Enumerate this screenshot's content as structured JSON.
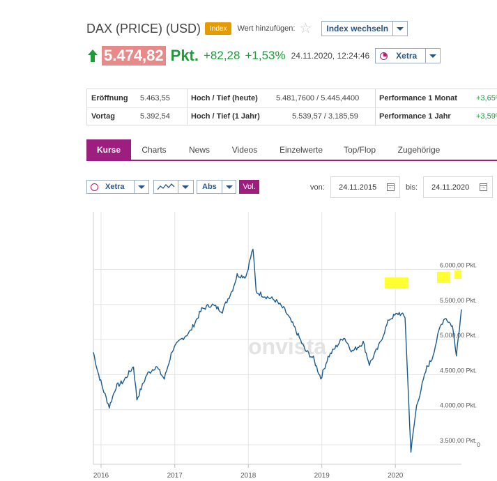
{
  "header": {
    "title": "DAX (PRICE) (USD)",
    "badge": "Index",
    "watch_label": "Wert hinzufügen:",
    "index_switch_label": "Index wechseln",
    "star_icon": "star-icon"
  },
  "quote": {
    "price": "5.474,82",
    "unit": "Pkt.",
    "change_abs": "+82,28",
    "change_pct": "+1,53%",
    "timestamp": "24.11.2020, 12:24:46",
    "exchange": "Xetra",
    "up_color": "#1f9b3a",
    "price_bg": "#e68a8a"
  },
  "stats": {
    "rows": [
      {
        "label1": "Eröffnung",
        "value1": "5.463,55",
        "label2": "Hoch / Tief (heute)",
        "value2": "5.481,7600 / 5.445,4400",
        "label3": "Performance 1 Monat",
        "value3": "+3,65%"
      },
      {
        "label1": "Vortag",
        "value1": "5.392,54",
        "label2": "Hoch / Tief (1 Jahr)",
        "value2": "5.539,57 / 3.185,59",
        "label3": "Performance 1 Jahr",
        "value3": "+3,59%"
      }
    ]
  },
  "tabs": [
    "Kurse",
    "Charts",
    "News",
    "Videos",
    "Einzelwerte",
    "Top/Flop",
    "Zugehörige"
  ],
  "active_tab": "Kurse",
  "controls": {
    "exchange": "Xetra",
    "chart_type_icon": "line-chart-icon",
    "mode": "Abs",
    "volume": "Vol.",
    "from_label": "von:",
    "from_date": "24.11.2015",
    "to_label": "bis:",
    "to_date": "24.11.2020"
  },
  "chart_data": {
    "type": "line",
    "watermark": "onvista",
    "x_range": [
      "2015-11-24",
      "2020-11-24"
    ],
    "x_ticks": [
      "2016",
      "2017",
      "2018",
      "2019",
      "2020"
    ],
    "y_ticks": [
      {
        "value": 6000,
        "label": "6.000,00 Pkt."
      },
      {
        "value": 5500,
        "label": "5.500,00 Pkt."
      },
      {
        "value": 5000,
        "label": "5.000,00 Pkt."
      },
      {
        "value": 4500,
        "label": "4.500,00 Pkt."
      },
      {
        "value": 4000,
        "label": "4.000,00 Pkt."
      },
      {
        "value": 3500,
        "label": "3.500,00 Pkt."
      }
    ],
    "zero_label": "0",
    "ylim": [
      3000,
      6300
    ],
    "line_color": "#1a5a8e",
    "highlight_color": "#ffff33",
    "series": [
      {
        "x": [
          "2015-11-24",
          "2015-12-15",
          "2016-01-10",
          "2016-02-11",
          "2016-03-15",
          "2016-04-20",
          "2016-06-10",
          "2016-06-27",
          "2016-08-15",
          "2016-09-30",
          "2016-11-10",
          "2016-12-20",
          "2017-02-01",
          "2017-03-20",
          "2017-05-15",
          "2017-07-01",
          "2017-08-25",
          "2017-10-15",
          "2017-11-07",
          "2017-12-20",
          "2018-01-24",
          "2018-02-09",
          "2018-03-25",
          "2018-05-15",
          "2018-07-01",
          "2018-08-20",
          "2018-10-10",
          "2018-11-20",
          "2018-12-27",
          "2019-02-01",
          "2019-04-20",
          "2019-06-01",
          "2019-07-25",
          "2019-08-25",
          "2019-10-10",
          "2019-12-01",
          "2020-01-20",
          "2020-02-18",
          "2020-03-18",
          "2020-04-15",
          "2020-06-05",
          "2020-06-30",
          "2020-08-10",
          "2020-09-03",
          "2020-10-10",
          "2020-10-30",
          "2020-11-24"
        ],
        "values": [
          4820,
          4550,
          4300,
          4040,
          4330,
          4400,
          4620,
          4150,
          4500,
          4620,
          4440,
          4850,
          5000,
          5120,
          5430,
          5500,
          5410,
          5720,
          5920,
          5900,
          6300,
          5680,
          5620,
          5560,
          5420,
          5160,
          4850,
          4730,
          4450,
          4750,
          5040,
          4830,
          4960,
          4650,
          4900,
          5290,
          5380,
          5320,
          3400,
          4050,
          4600,
          4720,
          5180,
          5320,
          5190,
          4800,
          5430
        ]
      }
    ]
  }
}
